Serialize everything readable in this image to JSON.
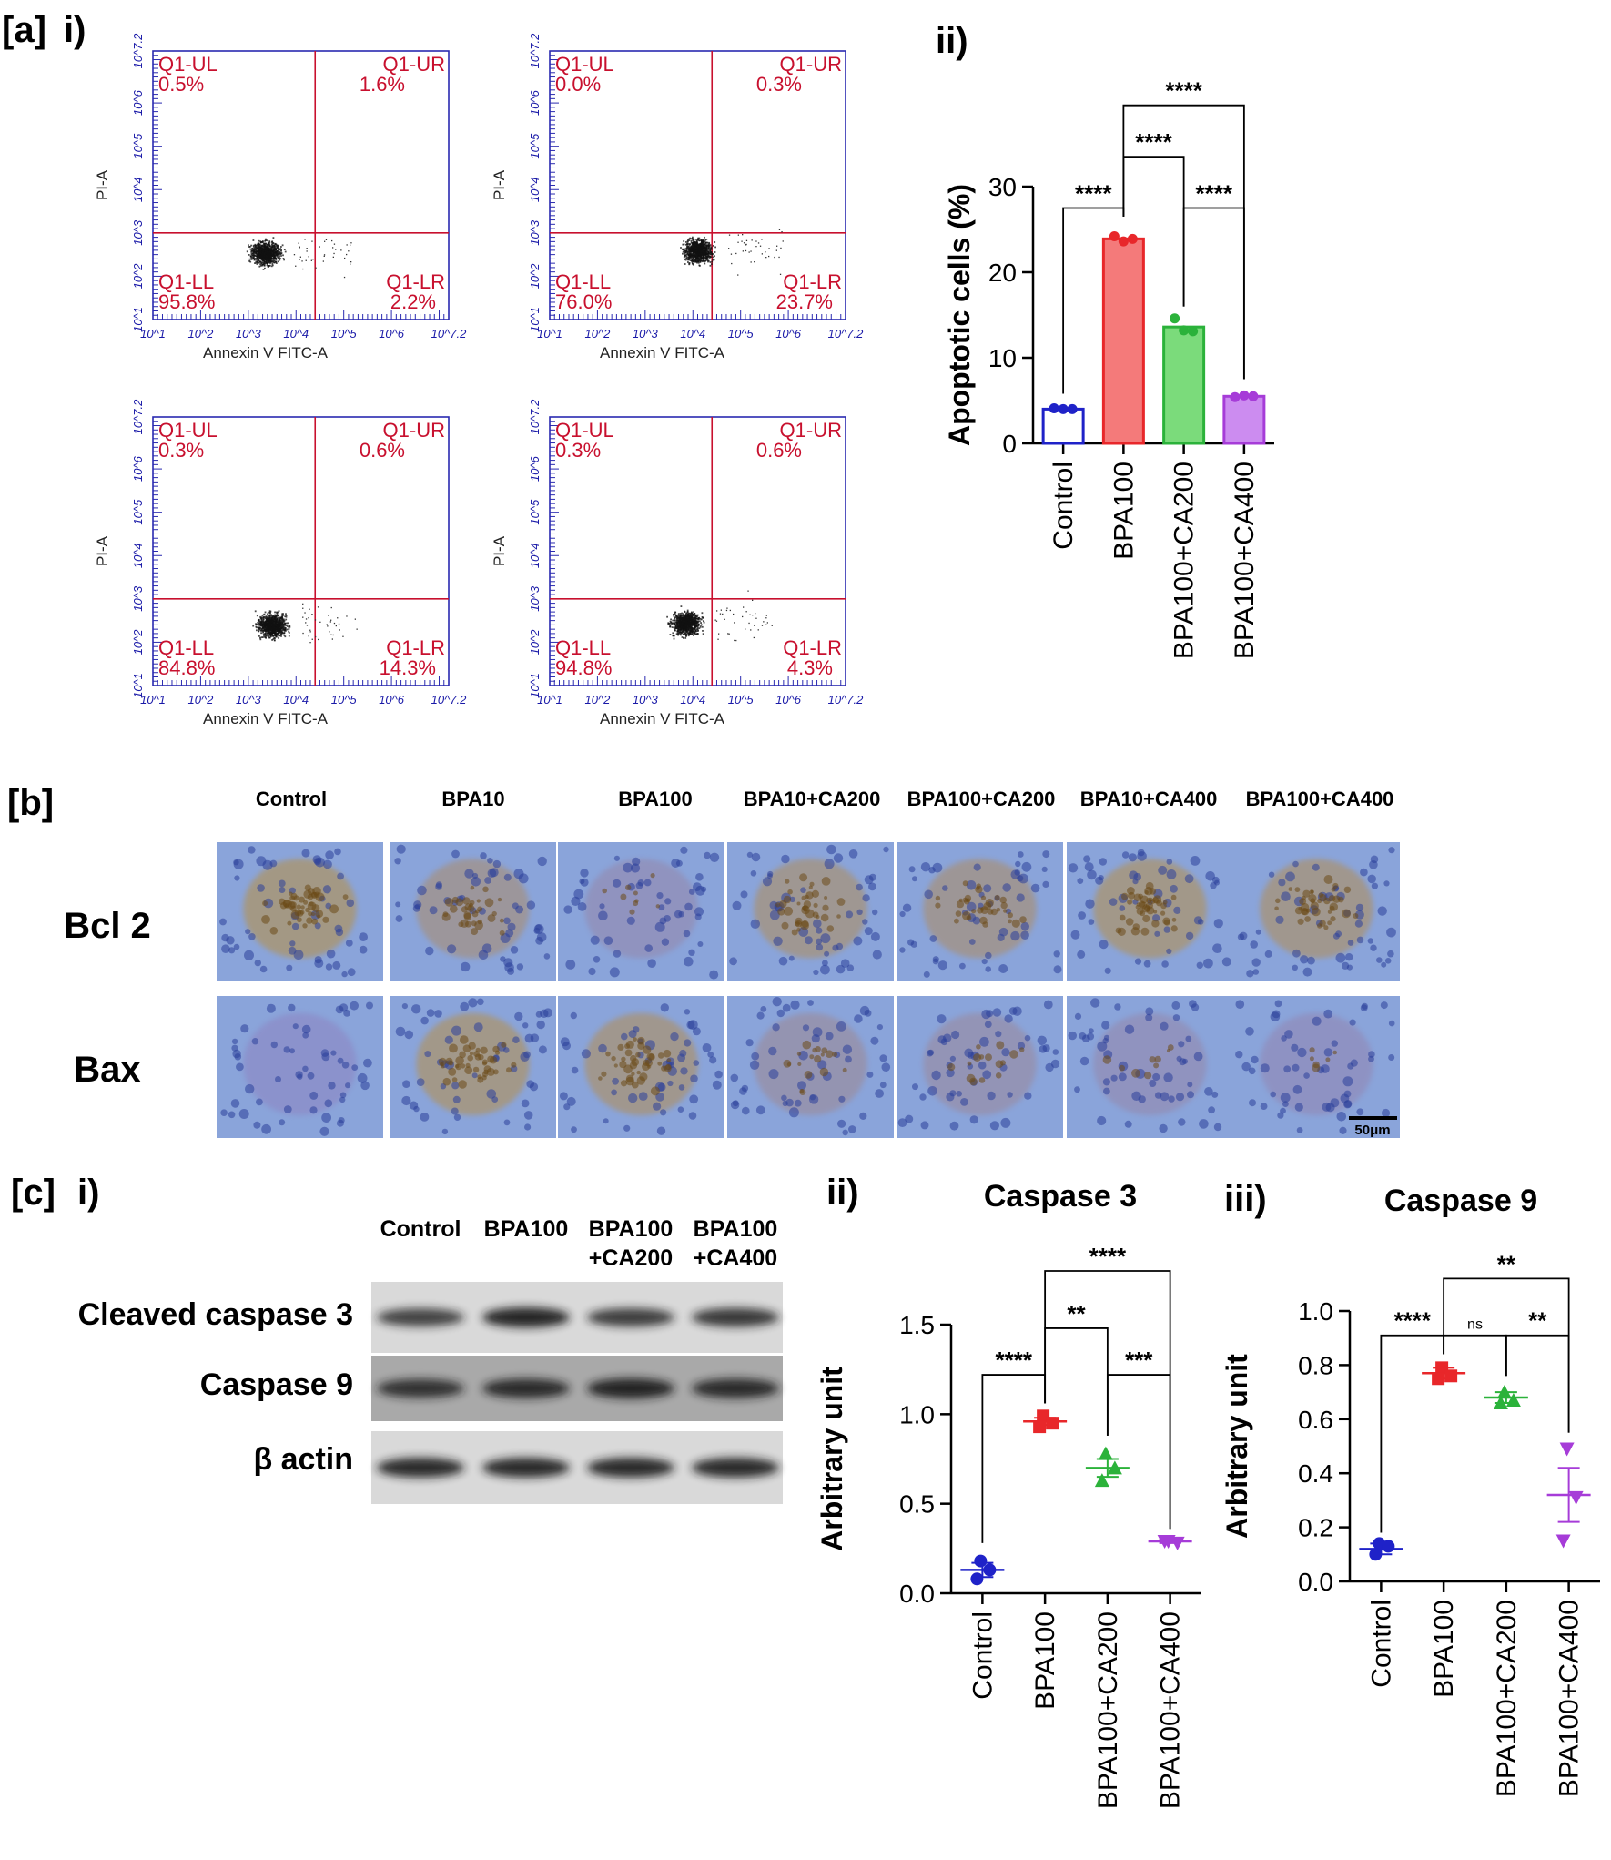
{
  "panel_labels": {
    "a": "[a]",
    "a_i": "i)",
    "a_ii": "ii)",
    "b": "[b]",
    "c": "[c]",
    "c_i": "i)",
    "c_ii": "ii)",
    "c_iii": "iii)"
  },
  "flow_cytometry": {
    "xlabel": "Annexin V FITC-A",
    "ylabel": "PI-A",
    "tick_labels": [
      "10^1",
      "10^2",
      "10^3",
      "10^4",
      "10^5",
      "10^6",
      "10^7.2"
    ],
    "quadrant_names": {
      "ul": "Q1-UL",
      "ur": "Q1-UR",
      "ll": "Q1-LL",
      "lr": "Q1-LR"
    },
    "plots": [
      {
        "ul": "0.5%",
        "ur": "1.6%",
        "ll": "95.8%",
        "lr": "2.2%",
        "cluster_center": [
          3.35,
          2.55
        ]
      },
      {
        "ul": "0.0%",
        "ur": "0.3%",
        "ll": "76.0%",
        "lr": "23.7%",
        "cluster_center": [
          4.1,
          2.6
        ]
      },
      {
        "ul": "0.3%",
        "ur": "0.6%",
        "ll": "84.8%",
        "lr": "14.3%",
        "cluster_center": [
          3.5,
          2.4
        ]
      },
      {
        "ul": "0.3%",
        "ur": "0.6%",
        "ll": "94.8%",
        "lr": "4.3%",
        "cluster_center": [
          3.85,
          2.45
        ]
      }
    ]
  },
  "ihc": {
    "columns": [
      "Control",
      "BPA10",
      "BPA100",
      "BPA10+CA200",
      "BPA100+CA200",
      "BPA10+CA400",
      "BPA100+CA400"
    ],
    "rows": [
      "Bcl 2",
      "Bax"
    ],
    "scale_bar": "50μm",
    "bcl2_stain": [
      0.8,
      0.55,
      0.15,
      0.65,
      0.6,
      0.75,
      0.7
    ],
    "bax_stain": [
      0.0,
      0.75,
      0.7,
      0.3,
      0.25,
      0.15,
      0.1
    ]
  },
  "western_blot": {
    "columns": [
      "Control",
      "BPA100",
      "BPA100\n+CA200",
      "BPA100\n+CA400"
    ],
    "col_line1": [
      "Control",
      "BPA100",
      "BPA100",
      "BPA100"
    ],
    "col_line2": [
      "",
      "",
      "+CA200",
      "+CA400"
    ],
    "rows": [
      "Cleaved caspase 3",
      "Caspase 9",
      "β actin"
    ]
  },
  "chart_data": [
    {
      "type": "bar",
      "title": "",
      "ylabel": "Apoptotic cells (%)",
      "ylim": [
        0,
        30
      ],
      "yticks": [
        "0",
        "10",
        "20",
        "30"
      ],
      "categories": [
        "Control",
        "BPA100",
        "BPA100+CA200",
        "BPA100+CA400"
      ],
      "values": [
        4.0,
        23.9,
        13.6,
        5.5
      ],
      "points": [
        [
          4.1,
          4.0,
          4.0
        ],
        [
          24.2,
          23.6,
          23.9
        ],
        [
          14.6,
          13.2,
          13.1
        ],
        [
          5.4,
          5.6,
          5.5
        ]
      ],
      "colors": [
        "#1f22c8",
        "#e8272a",
        "#2bb23a",
        "#a63cd8"
      ],
      "fills": [
        "#ffffff",
        "#f47a7a",
        "#7bdb7b",
        "#cc8cf0"
      ],
      "significance": [
        {
          "from": 0,
          "to": 1,
          "label": "****",
          "y": 27.5
        },
        {
          "from": 1,
          "to": 2,
          "label": "****",
          "y": 33.5
        },
        {
          "from": 2,
          "to": 3,
          "label": "****",
          "y": 27.5
        },
        {
          "from": 1,
          "to": 3,
          "label": "****",
          "y": 39.5
        }
      ]
    },
    {
      "type": "scatter",
      "title": "Caspase 3",
      "ylabel": "Arbitrary unit",
      "ylim": [
        0,
        1.5
      ],
      "yticks": [
        "0.0",
        "0.5",
        "1.0",
        "1.5"
      ],
      "categories": [
        "Control",
        "BPA100",
        "BPA100+CA200",
        "BPA100+CA400"
      ],
      "means": [
        0.13,
        0.96,
        0.7,
        0.29
      ],
      "sem": [
        0.04,
        0.02,
        0.05,
        0.01
      ],
      "points": [
        [
          0.18,
          0.13,
          0.08
        ],
        [
          0.99,
          0.95,
          0.93
        ],
        [
          0.78,
          0.7,
          0.63
        ],
        [
          0.29,
          0.28,
          0.29
        ]
      ],
      "colors": [
        "#1f22c8",
        "#e8272a",
        "#2bb23a",
        "#a63cd8"
      ],
      "significance": [
        {
          "from": 0,
          "to": 1,
          "label": "****",
          "y": 1.22
        },
        {
          "from": 1,
          "to": 2,
          "label": "**",
          "y": 1.48
        },
        {
          "from": 2,
          "to": 3,
          "label": "***",
          "y": 1.22
        },
        {
          "from": 1,
          "to": 3,
          "label": "****",
          "y": 1.8
        }
      ]
    },
    {
      "type": "scatter",
      "title": "Caspase 9",
      "ylabel": "Arbitrary unit",
      "ylim": [
        0,
        1.0
      ],
      "yticks": [
        "0.0",
        "0.2",
        "0.4",
        "0.6",
        "0.8",
        "1.0"
      ],
      "categories": [
        "Control",
        "BPA100",
        "BPA100+CA200",
        "BPA100+CA400"
      ],
      "means": [
        0.12,
        0.77,
        0.68,
        0.32
      ],
      "sem": [
        0.02,
        0.02,
        0.02,
        0.1
      ],
      "points": [
        [
          0.14,
          0.13,
          0.1
        ],
        [
          0.79,
          0.76,
          0.75
        ],
        [
          0.7,
          0.67,
          0.66
        ],
        [
          0.49,
          0.31,
          0.15
        ]
      ],
      "colors": [
        "#1f22c8",
        "#e8272a",
        "#2bb23a",
        "#a63cd8"
      ],
      "significance": [
        {
          "from": 0,
          "to": 1,
          "label": "****",
          "y": 0.91
        },
        {
          "from": 1,
          "to": 2,
          "label": "ns",
          "y": 0.91
        },
        {
          "from": 2,
          "to": 3,
          "label": "**",
          "y": 0.91
        },
        {
          "from": 1,
          "to": 3,
          "label": "**",
          "y": 1.12
        }
      ]
    }
  ]
}
